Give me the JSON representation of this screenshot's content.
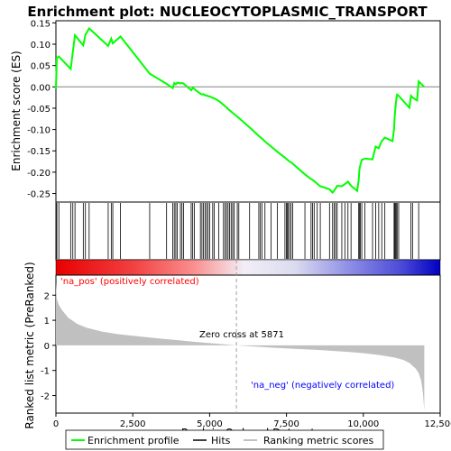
{
  "chart_data": {
    "type": "line",
    "title": "Enrichment plot: NUCLEOCYTOPLASMIC_TRANSPORT",
    "xlabel": "Rank in Ordered Dataset",
    "top_ylabel": "Enrichment score (ES)",
    "bottom_ylabel": "Ranked list metric (PreRanked)",
    "top_ylim": [
      -0.27,
      0.155
    ],
    "top_yticks": [
      -0.25,
      -0.2,
      -0.15,
      -0.1,
      -0.05,
      0.0,
      0.05,
      0.1,
      0.15
    ],
    "top_ytick_labels": [
      "-0.25",
      "-0.20",
      "-0.15",
      "-0.10",
      "-0.05",
      "0.00",
      "0.05",
      "0.10",
      "0.15"
    ],
    "bottom_ylim": [
      -2.7,
      2.8
    ],
    "bottom_yticks": [
      -2,
      -1,
      0,
      1,
      2
    ],
    "xlim": [
      0,
      12500
    ],
    "xticks": [
      0,
      2500,
      5000,
      7500,
      10000,
      12500
    ],
    "xtick_labels": [
      "0",
      "2,500",
      "5,000",
      "7,500",
      "10,000",
      "12,500"
    ],
    "n_genes": 11985,
    "zero_cross": 5871,
    "annotations": {
      "pos_label": "'na_pos' (positively correlated)",
      "neg_label": "'na_neg' (negatively correlated)",
      "zero_cross_label": "Zero cross at 5871"
    },
    "legend": {
      "position": "bottom",
      "items": [
        "Enrichment profile",
        "Hits",
        "Ranking metric scores"
      ]
    },
    "colors": {
      "es_line": "#00ff00",
      "hits": "#000000",
      "metric_fill": "#c0c0c0",
      "pos_label": "#ff0000",
      "neg_label": "#0000ff",
      "grid_zero": "#808080",
      "title": "#000000"
    },
    "hits": [
      30,
      95,
      480,
      550,
      620,
      890,
      960,
      1080,
      1700,
      1800,
      1850,
      2100,
      3050,
      3600,
      3800,
      3850,
      3900,
      3950,
      4050,
      4100,
      4150,
      4400,
      4450,
      4500,
      4700,
      4750,
      4800,
      4850,
      4900,
      4950,
      5000,
      5100,
      5150,
      5300,
      5450,
      5500,
      5550,
      5600,
      5650,
      5700,
      5750,
      5800,
      5900,
      5950,
      6300,
      6600,
      6650,
      6700,
      6800,
      7000,
      7200,
      7450,
      7500,
      7520,
      7550,
      7600,
      7650,
      7700,
      8100,
      8300,
      8350,
      8400,
      8500,
      8600,
      8900,
      9000,
      9050,
      9100,
      9150,
      9300,
      9400,
      9500,
      9600,
      9850,
      9870,
      9900,
      9950,
      10050,
      10300,
      10400,
      10500,
      10600,
      10700,
      11000,
      11020,
      11050,
      11070,
      11100,
      11150,
      11550,
      11600,
      11800
    ],
    "es_profile": [
      [
        0,
        -0.005
      ],
      [
        30,
        0.068
      ],
      [
        95,
        0.071
      ],
      [
        480,
        0.042
      ],
      [
        550,
        0.081
      ],
      [
        620,
        0.121
      ],
      [
        890,
        0.097
      ],
      [
        960,
        0.122
      ],
      [
        1080,
        0.137
      ],
      [
        1700,
        0.096
      ],
      [
        1800,
        0.113
      ],
      [
        1850,
        0.102
      ],
      [
        2100,
        0.118
      ],
      [
        3050,
        0.031
      ],
      [
        3600,
        0.007
      ],
      [
        3800,
        -0.003
      ],
      [
        3850,
        0.009
      ],
      [
        3900,
        0.006
      ],
      [
        3950,
        0.01
      ],
      [
        4050,
        0.008
      ],
      [
        4100,
        0.009
      ],
      [
        4150,
        0.008
      ],
      [
        4400,
        -0.008
      ],
      [
        4450,
        -0.002
      ],
      [
        4500,
        -0.005
      ],
      [
        4700,
        -0.016
      ],
      [
        4750,
        -0.018
      ],
      [
        4800,
        -0.017
      ],
      [
        4850,
        -0.02
      ],
      [
        4900,
        -0.02
      ],
      [
        4950,
        -0.022
      ],
      [
        5000,
        -0.022
      ],
      [
        5100,
        -0.026
      ],
      [
        5150,
        -0.027
      ],
      [
        5300,
        -0.033
      ],
      [
        5450,
        -0.042
      ],
      [
        5500,
        -0.045
      ],
      [
        5550,
        -0.048
      ],
      [
        5600,
        -0.052
      ],
      [
        5650,
        -0.055
      ],
      [
        5700,
        -0.058
      ],
      [
        5750,
        -0.061
      ],
      [
        5800,
        -0.064
      ],
      [
        5900,
        -0.07
      ],
      [
        5950,
        -0.073
      ],
      [
        6300,
        -0.095
      ],
      [
        6600,
        -0.115
      ],
      [
        6650,
        -0.118
      ],
      [
        6700,
        -0.121
      ],
      [
        6800,
        -0.128
      ],
      [
        7000,
        -0.14
      ],
      [
        7200,
        -0.152
      ],
      [
        7450,
        -0.166
      ],
      [
        7500,
        -0.169
      ],
      [
        7520,
        -0.17
      ],
      [
        7550,
        -0.172
      ],
      [
        7600,
        -0.175
      ],
      [
        7650,
        -0.177
      ],
      [
        7700,
        -0.18
      ],
      [
        8100,
        -0.205
      ],
      [
        8300,
        -0.216
      ],
      [
        8350,
        -0.218
      ],
      [
        8400,
        -0.221
      ],
      [
        8500,
        -0.227
      ],
      [
        8600,
        -0.233
      ],
      [
        8900,
        -0.24
      ],
      [
        9000,
        -0.248
      ],
      [
        9050,
        -0.244
      ],
      [
        9100,
        -0.238
      ],
      [
        9150,
        -0.232
      ],
      [
        9300,
        -0.233
      ],
      [
        9400,
        -0.228
      ],
      [
        9500,
        -0.222
      ],
      [
        9600,
        -0.232
      ],
      [
        9800,
        -0.244
      ],
      [
        9850,
        -0.218
      ],
      [
        9870,
        -0.195
      ],
      [
        9900,
        -0.184
      ],
      [
        9950,
        -0.171
      ],
      [
        10050,
        -0.168
      ],
      [
        10300,
        -0.17
      ],
      [
        10400,
        -0.14
      ],
      [
        10500,
        -0.144
      ],
      [
        10600,
        -0.127
      ],
      [
        10700,
        -0.119
      ],
      [
        10950,
        -0.127
      ],
      [
        11000,
        -0.098
      ],
      [
        11020,
        -0.068
      ],
      [
        11050,
        -0.045
      ],
      [
        11070,
        -0.03
      ],
      [
        11100,
        -0.018
      ],
      [
        11150,
        -0.021
      ],
      [
        11500,
        -0.049
      ],
      [
        11550,
        -0.021
      ],
      [
        11600,
        -0.025
      ],
      [
        11750,
        -0.032
      ],
      [
        11800,
        0.013
      ],
      [
        11985,
        0.0
      ]
    ],
    "metric_curve": [
      [
        0,
        2.5
      ],
      [
        30,
        1.85
      ],
      [
        100,
        1.6
      ],
      [
        200,
        1.4
      ],
      [
        400,
        1.1
      ],
      [
        700,
        0.85
      ],
      [
        1000,
        0.7
      ],
      [
        1500,
        0.55
      ],
      [
        2000,
        0.45
      ],
      [
        2500,
        0.38
      ],
      [
        3000,
        0.32
      ],
      [
        3500,
        0.26
      ],
      [
        4000,
        0.2
      ],
      [
        4500,
        0.14
      ],
      [
        5000,
        0.09
      ],
      [
        5500,
        0.04
      ],
      [
        5871,
        0.0
      ],
      [
        6500,
        -0.05
      ],
      [
        7000,
        -0.09
      ],
      [
        7500,
        -0.12
      ],
      [
        8000,
        -0.15
      ],
      [
        8500,
        -0.18
      ],
      [
        9000,
        -0.22
      ],
      [
        9500,
        -0.26
      ],
      [
        10000,
        -0.31
      ],
      [
        10500,
        -0.38
      ],
      [
        11000,
        -0.48
      ],
      [
        11300,
        -0.58
      ],
      [
        11500,
        -0.7
      ],
      [
        11700,
        -0.92
      ],
      [
        11800,
        -1.1
      ],
      [
        11880,
        -1.4
      ],
      [
        11940,
        -1.9
      ],
      [
        11985,
        -2.6
      ]
    ]
  }
}
